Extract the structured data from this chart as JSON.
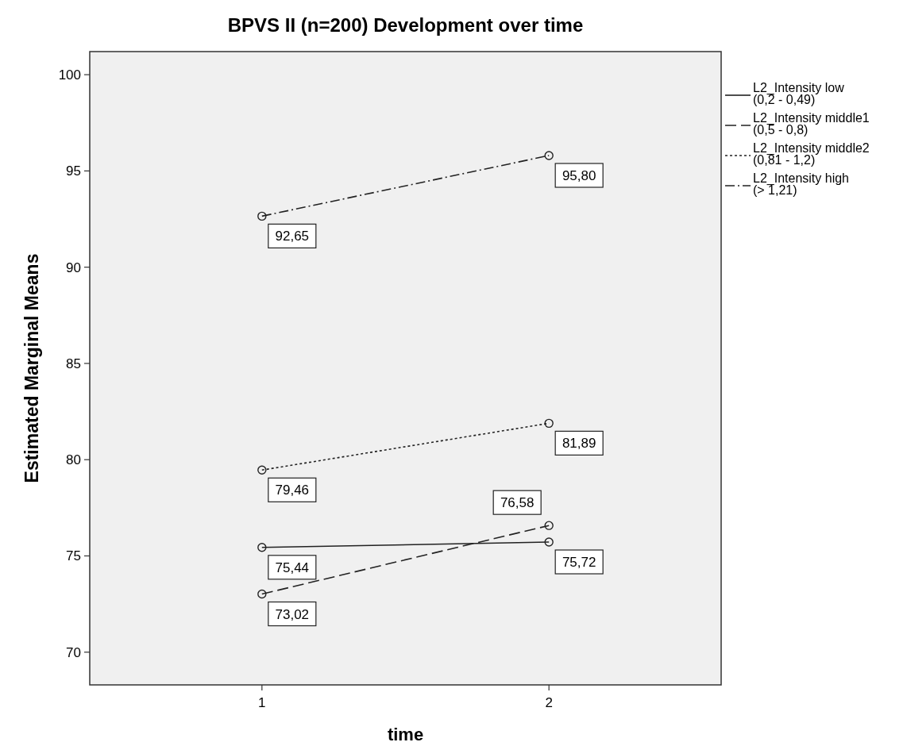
{
  "chart_data": {
    "type": "line",
    "title": "BPVS II (n=200) Development over time",
    "xlabel": "time",
    "ylabel": "Estimated Marginal Means",
    "categories": [
      "1",
      "2"
    ],
    "ylim": [
      68.3,
      101.2
    ],
    "yticks": [
      70,
      75,
      80,
      85,
      90,
      95,
      100
    ],
    "grid": false,
    "legend": "right",
    "marker": "circle",
    "series": [
      {
        "name": "L2_Intensity low\n(0,2 - 0,49)",
        "color": "#222222",
        "line_style": "solid",
        "values": [
          75.44,
          75.72
        ],
        "value_labels": [
          "75,44",
          "75,72"
        ]
      },
      {
        "name": "L2_Intensity middle1\n(0,5 - 0,8)",
        "color": "#222222",
        "line_style": "dashed",
        "values": [
          73.02,
          76.58
        ],
        "value_labels": [
          "73,02",
          "76,58"
        ]
      },
      {
        "name": "L2_Intensity middle2\n(0,81 - 1,2)",
        "color": "#222222",
        "line_style": "dotted",
        "values": [
          79.46,
          81.89
        ],
        "value_labels": [
          "79,46",
          "81,89"
        ]
      },
      {
        "name": "L2_Intensity high\n(> 1,21)",
        "color": "#222222",
        "line_style": "dashdot",
        "values": [
          92.65,
          95.8
        ],
        "value_labels": [
          "92,65",
          "95,80"
        ]
      }
    ]
  }
}
